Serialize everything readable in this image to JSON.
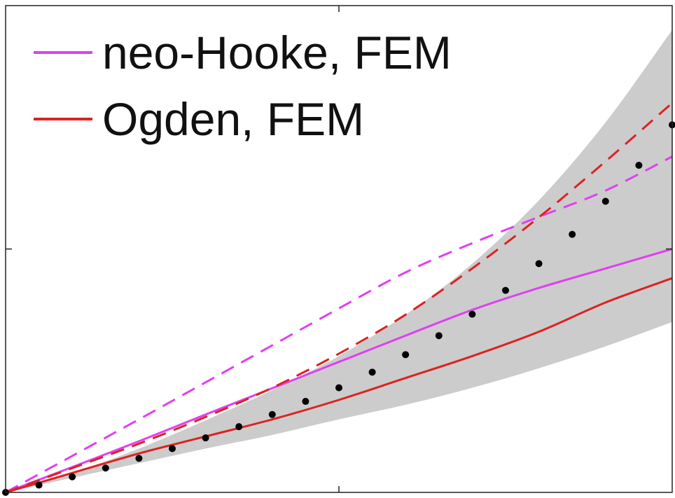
{
  "chart_data": {
    "type": "line",
    "title": "",
    "xlabel": "",
    "ylabel": "",
    "xlim": [
      0,
      1
    ],
    "ylim": [
      0,
      1
    ],
    "grid": false,
    "legend_position": "top-left",
    "legend": [
      {
        "label": "neo-Hooke, FEM",
        "color": "#e040f0"
      },
      {
        "label": "Ogden, FEM",
        "color": "#dd2222"
      }
    ],
    "series": [
      {
        "name": "neo-Hooke, FEM",
        "style": "solid",
        "color": "#e040f0",
        "x": [
          0,
          0.1,
          0.2,
          0.3,
          0.4,
          0.5,
          0.6,
          0.7,
          0.8,
          0.9,
          1.0
        ],
        "y": [
          0,
          0.052,
          0.105,
          0.16,
          0.214,
          0.268,
          0.322,
          0.375,
          0.42,
          0.46,
          0.5
        ]
      },
      {
        "style": "dashed",
        "color": "#e040f0",
        "x": [
          0,
          0.1,
          0.2,
          0.3,
          0.4,
          0.5,
          0.6,
          0.7,
          0.8,
          0.9,
          1.0
        ],
        "y": [
          0,
          0.075,
          0.15,
          0.226,
          0.302,
          0.378,
          0.452,
          0.512,
          0.566,
          0.62,
          0.69
        ]
      },
      {
        "name": "Ogden, FEM",
        "style": "solid",
        "color": "#dd2222",
        "x": [
          0,
          0.1,
          0.2,
          0.3,
          0.4,
          0.5,
          0.6,
          0.7,
          0.8,
          0.9,
          1.0
        ],
        "y": [
          0,
          0.04,
          0.08,
          0.115,
          0.15,
          0.19,
          0.235,
          0.28,
          0.33,
          0.39,
          0.44
        ]
      },
      {
        "style": "dashed",
        "color": "#dd2222",
        "x": [
          0,
          0.1,
          0.2,
          0.3,
          0.4,
          0.5,
          0.6,
          0.7,
          0.8,
          0.9,
          1.0
        ],
        "y": [
          0,
          0.05,
          0.1,
          0.155,
          0.215,
          0.285,
          0.365,
          0.46,
          0.565,
          0.68,
          0.8
        ]
      },
      {
        "style": "dotted",
        "color": "#000000",
        "x": [
          0,
          0.05,
          0.1,
          0.15,
          0.2,
          0.25,
          0.3,
          0.35,
          0.4,
          0.45,
          0.5,
          0.55,
          0.6,
          0.65,
          0.7,
          0.75,
          0.8,
          0.85,
          0.9,
          0.95,
          1.0
        ],
        "y": [
          0,
          0.015,
          0.032,
          0.05,
          0.07,
          0.09,
          0.112,
          0.135,
          0.16,
          0.187,
          0.215,
          0.247,
          0.283,
          0.322,
          0.366,
          0.415,
          0.47,
          0.53,
          0.598,
          0.672,
          0.755
        ]
      }
    ],
    "band": {
      "color": "#cccccc",
      "x": [
        0,
        0.1,
        0.2,
        0.3,
        0.4,
        0.5,
        0.6,
        0.7,
        0.8,
        0.9,
        1.0
      ],
      "lower": [
        0,
        0.03,
        0.06,
        0.09,
        0.118,
        0.15,
        0.18,
        0.215,
        0.255,
        0.3,
        0.35
      ],
      "upper": [
        0,
        0.04,
        0.09,
        0.148,
        0.21,
        0.28,
        0.365,
        0.47,
        0.6,
        0.76,
        0.95
      ]
    }
  }
}
